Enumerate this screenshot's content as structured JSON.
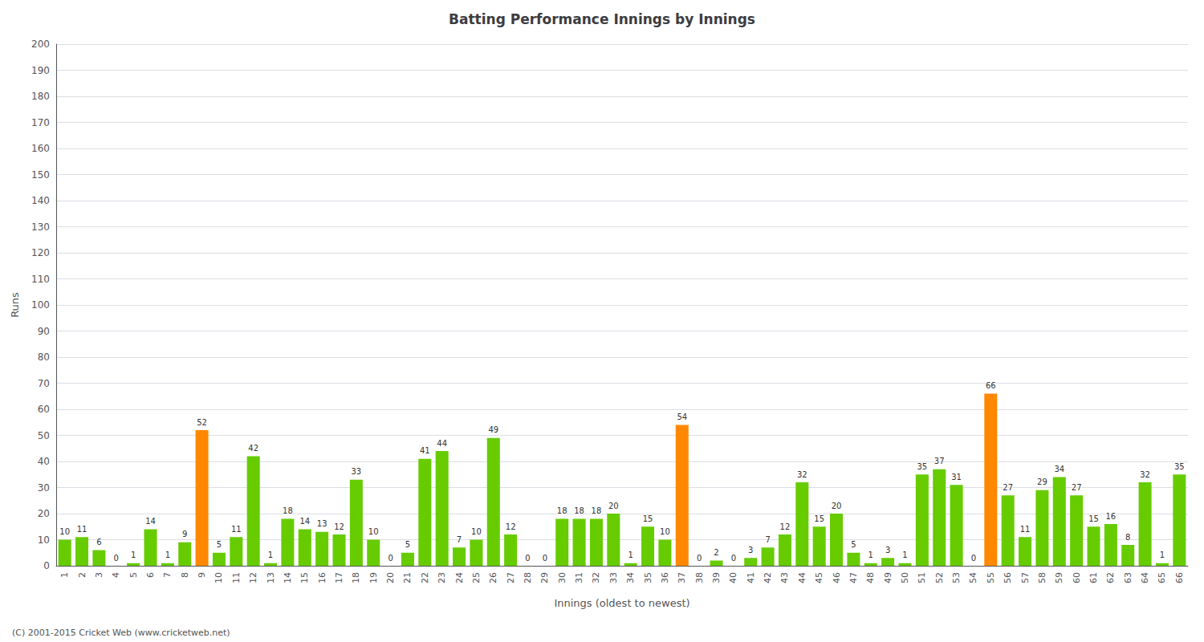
{
  "chart_data": {
    "type": "bar",
    "title": "Batting Performance Innings by Innings",
    "xlabel": "Innings (oldest to newest)",
    "ylabel": "Runs",
    "annotations": [
      "(C) 2001-2015 Cricket Web (www.cricketweb.net)"
    ],
    "categories": [
      1,
      2,
      3,
      4,
      5,
      6,
      7,
      8,
      9,
      10,
      11,
      12,
      13,
      14,
      15,
      16,
      17,
      18,
      19,
      20,
      21,
      22,
      23,
      24,
      25,
      26,
      27,
      28,
      29,
      30,
      31,
      32,
      33,
      34,
      35,
      36,
      37,
      38,
      39,
      40,
      41,
      42,
      43,
      44,
      45,
      46,
      47,
      48,
      49,
      50,
      51,
      52,
      53,
      54,
      55,
      56,
      57,
      58,
      59,
      60,
      61,
      62,
      63,
      64,
      65,
      66
    ],
    "values": [
      10,
      11,
      6,
      0,
      1,
      14,
      1,
      9,
      52,
      5,
      11,
      42,
      1,
      18,
      14,
      13,
      12,
      33,
      10,
      0,
      5,
      41,
      44,
      7,
      10,
      49,
      12,
      0,
      0,
      18,
      18,
      18,
      20,
      1,
      15,
      10,
      54,
      0,
      2,
      0,
      3,
      7,
      12,
      32,
      15,
      20,
      5,
      1,
      3,
      1,
      35,
      37,
      31,
      0,
      66,
      27,
      11,
      29,
      34,
      27,
      15,
      16,
      8,
      32,
      1,
      35
    ],
    "colors": [
      "#66cc00",
      "#66cc00",
      "#66cc00",
      "#66cc00",
      "#66cc00",
      "#66cc00",
      "#66cc00",
      "#66cc00",
      "#ff8800",
      "#66cc00",
      "#66cc00",
      "#66cc00",
      "#66cc00",
      "#66cc00",
      "#66cc00",
      "#66cc00",
      "#66cc00",
      "#66cc00",
      "#66cc00",
      "#66cc00",
      "#66cc00",
      "#66cc00",
      "#66cc00",
      "#66cc00",
      "#66cc00",
      "#66cc00",
      "#66cc00",
      "#66cc00",
      "#66cc00",
      "#66cc00",
      "#66cc00",
      "#66cc00",
      "#66cc00",
      "#66cc00",
      "#66cc00",
      "#66cc00",
      "#ff8800",
      "#66cc00",
      "#66cc00",
      "#66cc00",
      "#66cc00",
      "#66cc00",
      "#66cc00",
      "#66cc00",
      "#66cc00",
      "#66cc00",
      "#66cc00",
      "#66cc00",
      "#66cc00",
      "#66cc00",
      "#66cc00",
      "#66cc00",
      "#66cc00",
      "#66cc00",
      "#ff8800",
      "#66cc00",
      "#66cc00",
      "#66cc00",
      "#66cc00",
      "#66cc00",
      "#66cc00",
      "#66cc00",
      "#66cc00",
      "#66cc00",
      "#66cc00",
      "#66cc00"
    ],
    "ylim": [
      0,
      200
    ],
    "yticks": [
      0,
      10,
      20,
      30,
      40,
      50,
      60,
      70,
      80,
      90,
      100,
      110,
      120,
      130,
      140,
      150,
      160,
      170,
      180,
      190,
      200
    ],
    "grid": true,
    "data_labels": true
  }
}
